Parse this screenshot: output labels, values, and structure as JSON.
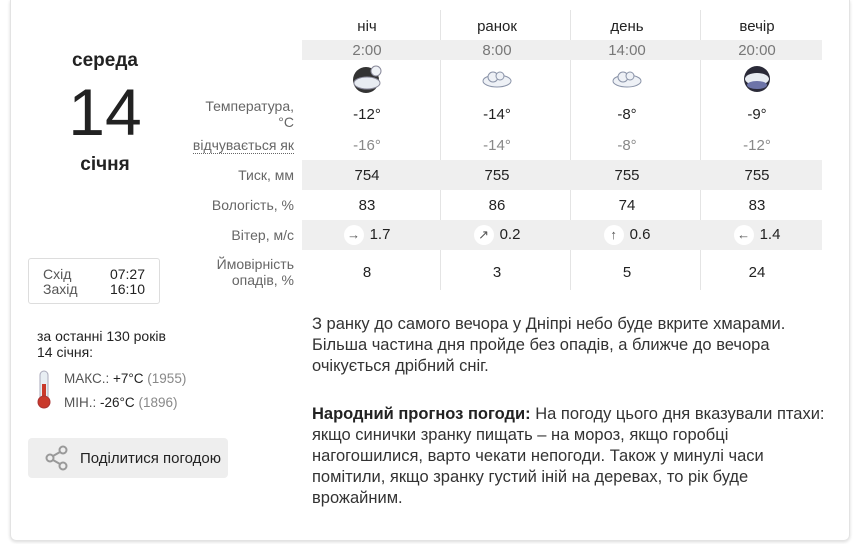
{
  "day": {
    "weekday": "середа",
    "date": "14",
    "month": "січня"
  },
  "sun": {
    "rise_label": "Схід",
    "rise": "07:27",
    "set_label": "Захід",
    "set": "16:10"
  },
  "history": {
    "title": "за останні 130 років",
    "date": "14 січня:",
    "max_label": "МАКС.:",
    "max": "+7°C",
    "max_year": "(1955)",
    "min_label": "МІН.:",
    "min": "-26°C",
    "min_year": "(1896)"
  },
  "share_label": "Поділитися погодою",
  "labels": {
    "temp": "Температура, °C",
    "feels": "відчувається як",
    "pressure": "Тиск, мм",
    "humidity": "Вологість, %",
    "wind": "Вітер, м/с",
    "precip1": "Ймовірність",
    "precip2": "опадів, %"
  },
  "periods": [
    {
      "name": "ніч",
      "time": "2:00",
      "icon": "cloudy-night-icon",
      "temp": "-12°",
      "feels": "-16°",
      "pressure": "754",
      "humidity": "83",
      "wind_dir": "→",
      "wind": "1.7",
      "precip": "8"
    },
    {
      "name": "ранок",
      "time": "8:00",
      "icon": "cloud-icon",
      "temp": "-14°",
      "feels": "-14°",
      "pressure": "755",
      "humidity": "86",
      "wind_dir": "↗",
      "wind": "0.2",
      "precip": "3"
    },
    {
      "name": "день",
      "time": "14:00",
      "icon": "cloud-icon",
      "temp": "-8°",
      "feels": "-8°",
      "pressure": "755",
      "humidity": "74",
      "wind_dir": "↑",
      "wind": "0.6",
      "precip": "5"
    },
    {
      "name": "вечір",
      "time": "20:00",
      "icon": "snow-cloud-icon",
      "temp": "-9°",
      "feels": "-12°",
      "pressure": "755",
      "humidity": "83",
      "wind_dir": "←",
      "wind": "1.4",
      "precip": "24"
    }
  ],
  "description": "З ранку до самого вечора у Дніпрі небо буде вкрите хмарами. Більша частина дня пройде без опадів, а ближче до вечора очікується дрібний сніг.",
  "folk": {
    "title": "Народний прогноз погоди:",
    "text": " На погоду цього дня вказували птахи: якщо синички зранку пищать – на мороз, якщо горобці нагогошилися, варто чекати непогоди. Також у минулі часи помітили, якщо зранку густий іній на деревах, то рік буде врожайним."
  }
}
